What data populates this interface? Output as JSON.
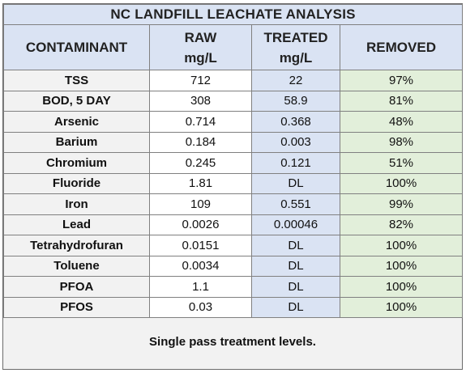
{
  "title": "NC LANDFILL LEACHATE ANALYSIS",
  "headers": {
    "contaminant": "CONTAMINANT",
    "raw_line1": "RAW",
    "raw_line2": "mg/L",
    "treated_line1": "TREATED",
    "treated_line2": "mg/L",
    "removed": "REMOVED"
  },
  "rows": [
    {
      "name": "TSS",
      "raw": "712",
      "treated": "22",
      "removed": "97%"
    },
    {
      "name": "BOD, 5 DAY",
      "raw": "308",
      "treated": "58.9",
      "removed": "81%"
    },
    {
      "name": "Arsenic",
      "raw": "0.714",
      "treated": "0.368",
      "removed": "48%"
    },
    {
      "name": "Barium",
      "raw": "0.184",
      "treated": "0.003",
      "removed": "98%"
    },
    {
      "name": "Chromium",
      "raw": "0.245",
      "treated": "0.121",
      "removed": "51%"
    },
    {
      "name": "Fluoride",
      "raw": "1.81",
      "treated": "DL",
      "removed": "100%"
    },
    {
      "name": "Iron",
      "raw": "109",
      "treated": "0.551",
      "removed": "99%"
    },
    {
      "name": "Lead",
      "raw": "0.0026",
      "treated": "0.00046",
      "removed": "82%"
    },
    {
      "name": "Tetrahydrofuran",
      "raw": "0.0151",
      "treated": "DL",
      "removed": "100%"
    },
    {
      "name": "Toluene",
      "raw": "0.0034",
      "treated": "DL",
      "removed": "100%"
    },
    {
      "name": "PFOA",
      "raw": "1.1",
      "treated": "DL",
      "removed": "100%"
    },
    {
      "name": "PFOS",
      "raw": "0.03",
      "treated": "DL",
      "removed": "100%"
    }
  ],
  "footer": "Single pass treatment levels.",
  "colors": {
    "header_bg": "#dae3f3",
    "treated_bg": "#dae3f3",
    "removed_bg": "#e2efda",
    "name_bg": "#f2f2f2"
  }
}
